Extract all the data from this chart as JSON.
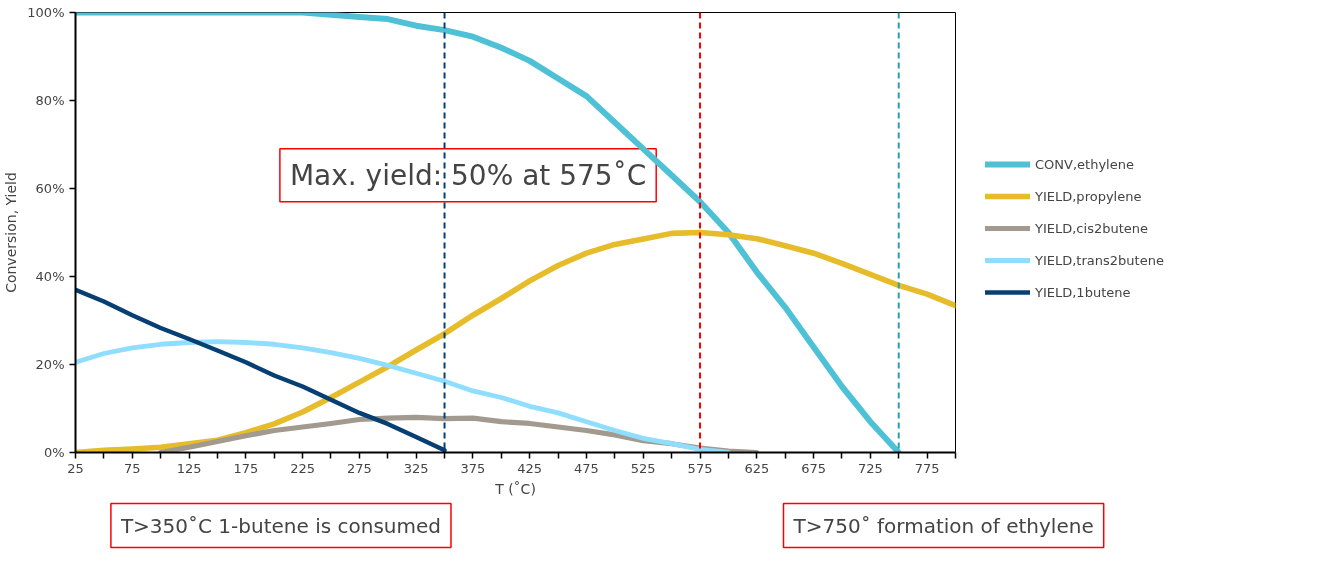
{
  "chart_data": {
    "type": "line",
    "xlabel": "T (˚C)",
    "ylabel": "Conversion, Yield",
    "xlim": [
      25,
      800
    ],
    "ylim": [
      0,
      100
    ],
    "xticks": [
      25,
      {
        "value": 50,
        "label": null
      },
      75,
      {
        "value": 100,
        "label": null
      },
      125,
      {
        "value": 150,
        "label": null
      },
      175,
      {
        "value": 200,
        "label": null
      },
      225,
      {
        "value": 250,
        "label": null
      },
      275,
      {
        "value": 300,
        "label": null
      },
      325,
      {
        "value": 350,
        "label": null
      },
      375,
      {
        "value": 400,
        "label": null
      },
      425,
      {
        "value": 450,
        "label": null
      },
      475,
      {
        "value": 500,
        "label": null
      },
      525,
      {
        "value": 550,
        "label": null
      },
      575,
      {
        "value": 600,
        "label": null
      },
      625,
      {
        "value": 650,
        "label": null
      },
      675,
      {
        "value": 700,
        "label": null
      },
      725,
      {
        "value": 750,
        "label": null
      },
      775,
      {
        "value": 800,
        "label": null
      }
    ],
    "yticks": [
      {
        "value": 0,
        "label": "0%"
      },
      {
        "value": 20,
        "label": "20%"
      },
      {
        "value": 40,
        "label": "40%"
      },
      {
        "value": 60,
        "label": "60%"
      },
      {
        "value": 80,
        "label": "80%"
      },
      {
        "value": 100,
        "label": "100%"
      }
    ],
    "grid": false,
    "legend": "right",
    "line_style": "solid",
    "series": [
      {
        "name": "CONV,ethylene",
        "color": "#4fc1d6",
        "x": [
          25,
          50,
          75,
          100,
          125,
          150,
          175,
          200,
          225,
          250,
          275,
          300,
          325,
          350,
          375,
          400,
          425,
          450,
          475,
          500,
          525,
          550,
          575,
          600,
          625,
          650,
          675,
          700,
          725,
          750
        ],
        "values": [
          100,
          100,
          100,
          100,
          100,
          100,
          100,
          100,
          100,
          99.5,
          99,
          98.5,
          97,
          96,
          94.5,
          92,
          89,
          85,
          81,
          75,
          69,
          63,
          57,
          50,
          41,
          33,
          24,
          15,
          7,
          0
        ]
      },
      {
        "name": "YIELD,propylene",
        "color": "#e6bc2a",
        "x": [
          25,
          50,
          75,
          100,
          125,
          150,
          175,
          200,
          225,
          250,
          275,
          300,
          325,
          350,
          375,
          400,
          425,
          450,
          475,
          500,
          525,
          550,
          575,
          600,
          625,
          650,
          675,
          700,
          725,
          750,
          775,
          800
        ],
        "values": [
          0,
          0.5,
          0.8,
          1.2,
          2,
          2.8,
          4.5,
          6.5,
          9.2,
          12.5,
          16,
          19.5,
          23.3,
          27,
          31.2,
          35,
          39,
          42.5,
          45.3,
          47.3,
          48.5,
          49.8,
          50,
          49.5,
          48.6,
          47,
          45.3,
          43,
          40.5,
          38,
          36,
          33.4
        ]
      },
      {
        "name": "YIELD,cis2butene",
        "color": "#a39a8f",
        "x": [
          100,
          125,
          150,
          175,
          200,
          225,
          250,
          275,
          300,
          325,
          350,
          375,
          400,
          425,
          450,
          475,
          500,
          525,
          550,
          575,
          600,
          625
        ],
        "values": [
          0,
          1.2,
          2.5,
          3.8,
          5,
          5.8,
          6.6,
          7.5,
          7.8,
          8,
          7.7,
          7.8,
          7,
          6.6,
          5.8,
          5,
          4,
          2.7,
          2,
          1,
          0.3,
          0
        ]
      },
      {
        "name": "YIELD,trans2butene",
        "color": "#8fddff",
        "x": [
          25,
          50,
          75,
          100,
          125,
          150,
          175,
          200,
          225,
          250,
          275,
          300,
          325,
          350,
          375,
          400,
          425,
          450,
          475,
          500,
          525,
          550,
          575,
          600
        ],
        "values": [
          20.5,
          22.5,
          23.8,
          24.6,
          25,
          25.2,
          25,
          24.6,
          23.8,
          22.7,
          21.4,
          19.8,
          18,
          16.2,
          14,
          12.5,
          10.5,
          9,
          7,
          5,
          3.2,
          2,
          0.7,
          0
        ]
      },
      {
        "name": "YIELD,1butene",
        "color": "#063f73",
        "x": [
          25,
          50,
          75,
          100,
          125,
          150,
          175,
          200,
          225,
          250,
          275,
          300,
          325,
          350
        ],
        "values": [
          37,
          34.3,
          31.2,
          28.3,
          25.8,
          23.2,
          20.5,
          17.5,
          15,
          12,
          9,
          6.5,
          3.5,
          0.5
        ]
      }
    ],
    "ref_lines": [
      {
        "axis": "x",
        "value": 575,
        "color": "#ff0000",
        "line_style": "dashed"
      },
      {
        "axis": "x",
        "value": 350,
        "color": "#063f73",
        "line_style": "dashed"
      },
      {
        "axis": "x",
        "value": 750,
        "color": "#2a9fb0",
        "line_style": "dashed"
      }
    ],
    "annotations": [
      "Max. yield: 50% at 575˚C",
      "T>350˚C 1-butene is consumed",
      "T>750˚ formation of ethylene"
    ]
  }
}
